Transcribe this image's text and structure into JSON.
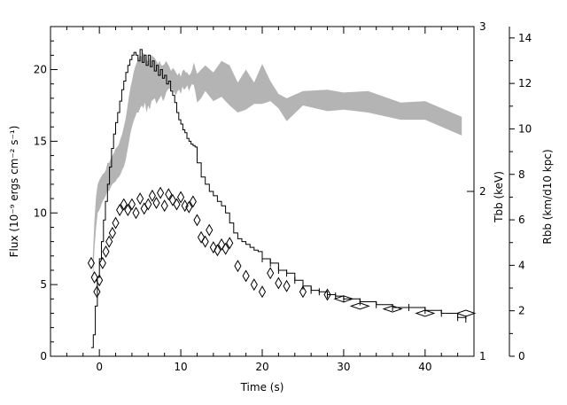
{
  "chart_data": {
    "type": "line",
    "xlabel": "Time (s)",
    "ylabel_left": "Flux (10⁻⁹ ergs cm⁻² s⁻¹)",
    "ylabel_right1": "Tbb (keV)",
    "ylabel_right2": "Rbb (km/d10 kpc)",
    "xlim": [
      -6,
      46
    ],
    "ylim_flux": [
      0,
      23
    ],
    "ylim_tbb": [
      1,
      3
    ],
    "ylim_rbb": [
      0,
      14.5
    ],
    "x_ticks": [
      0,
      10,
      20,
      30,
      40
    ],
    "flux_ticks": [
      0,
      5,
      10,
      15,
      20
    ],
    "tbb_ticks": [
      1,
      2,
      3
    ],
    "rbb_ticks": [
      0,
      2,
      4,
      6,
      8,
      10,
      12,
      14
    ],
    "series": [
      {
        "kind": "step",
        "color": "#000000",
        "x": [
          -1.0,
          -0.75,
          -0.5,
          -0.25,
          0,
          0.25,
          0.5,
          0.75,
          1.0,
          1.25,
          1.5,
          1.75,
          2.0,
          2.25,
          2.5,
          2.75,
          3.0,
          3.25,
          3.5,
          3.75,
          4.0,
          4.25,
          4.5,
          4.75,
          5.0,
          5.25,
          5.5,
          5.75,
          6.0,
          6.25,
          6.5,
          6.75,
          7.0,
          7.25,
          7.5,
          7.75,
          8.0,
          8.25,
          8.5,
          8.75,
          9.0,
          9.25,
          9.5,
          9.75,
          10.0,
          10.25,
          10.5,
          10.75,
          11.0,
          11.25,
          11.5,
          11.75,
          12.0,
          12.5,
          13.0,
          13.5,
          14.0,
          14.5,
          15.0,
          15.5,
          16.0,
          16.5,
          17.0,
          17.5,
          18.0,
          18.5,
          19.0,
          19.5,
          20.0,
          21.0,
          22.0,
          23.0,
          24.0,
          25.0,
          26.0,
          27.0,
          28.0,
          29.0,
          30.0,
          32.0,
          34.0,
          36.0,
          38.0,
          40.0,
          42.0,
          44.0,
          45.0
        ],
        "y": [
          0.6,
          1.5,
          3.5,
          5.5,
          6.8,
          8.0,
          9.5,
          10.8,
          12.0,
          13.2,
          14.5,
          15.5,
          16.3,
          17.0,
          17.8,
          18.6,
          19.2,
          19.8,
          20.3,
          20.7,
          21.0,
          21.2,
          21.0,
          20.6,
          21.4,
          20.5,
          21.0,
          20.3,
          21.0,
          20.2,
          20.6,
          19.9,
          20.3,
          19.6,
          20.0,
          19.4,
          19.6,
          19.0,
          19.2,
          18.5,
          18.2,
          17.7,
          17.0,
          16.5,
          16.2,
          15.8,
          15.6,
          15.2,
          15.0,
          14.8,
          14.7,
          14.6,
          13.5,
          12.5,
          12.0,
          11.5,
          11.2,
          10.8,
          10.5,
          10.0,
          9.3,
          8.6,
          8.2,
          8.0,
          7.8,
          7.6,
          7.4,
          7.3,
          6.8,
          6.5,
          6.0,
          5.8,
          5.3,
          4.9,
          4.6,
          4.5,
          4.3,
          4.2,
          4.0,
          3.8,
          3.6,
          3.4,
          3.4,
          3.2,
          3.0,
          2.7,
          2.6
        ]
      },
      {
        "kind": "band",
        "color": "#b4b4b4",
        "x": [
          -0.8,
          -0.6,
          -0.4,
          -0.2,
          0,
          0.2,
          0.4,
          0.6,
          0.8,
          1.0,
          1.2,
          1.4,
          1.6,
          1.8,
          2.0,
          2.2,
          2.4,
          2.6,
          2.8,
          3.0,
          3.2,
          3.4,
          3.6,
          3.8,
          4.0,
          4.2,
          4.4,
          4.6,
          4.8,
          5.0,
          5.2,
          5.4,
          5.6,
          5.8,
          6.0,
          6.2,
          6.4,
          6.6,
          6.8,
          7.0,
          7.2,
          7.4,
          7.6,
          7.8,
          8.0,
          8.2,
          8.4,
          8.6,
          8.8,
          9.0,
          9.2,
          9.4,
          9.6,
          9.8,
          10.0,
          10.2,
          10.4,
          10.6,
          10.8,
          11.0,
          11.2,
          11.4,
          11.6,
          11.8,
          12.0,
          12.5,
          13.0,
          14.0,
          15.0,
          16.0,
          17.0,
          18.0,
          19.0,
          20.0,
          21.0,
          22.0,
          23.0,
          25.0,
          28.0,
          30.0,
          33.0,
          37.0,
          40.0,
          44.5
        ],
        "low": [
          5.0,
          7.5,
          9.0,
          10.0,
          10.2,
          10.5,
          10.8,
          11.0,
          11.2,
          11.6,
          11.5,
          11.8,
          12.0,
          12.1,
          12.2,
          12.4,
          12.5,
          12.7,
          13.0,
          13.2,
          13.6,
          14.2,
          14.8,
          15.5,
          16.0,
          16.4,
          16.7,
          17.0,
          17.0,
          17.3,
          17.5,
          17.3,
          17.7,
          17.0,
          17.5,
          17.2,
          17.8,
          17.9,
          18.0,
          17.6,
          17.8,
          18.0,
          18.2,
          17.8,
          18.0,
          18.4,
          18.6,
          18.7,
          18.5,
          18.6,
          18.4,
          18.2,
          18.5,
          18.6,
          18.3,
          18.8,
          18.6,
          18.7,
          18.9,
          18.5,
          18.8,
          19.0,
          18.9,
          18.4,
          17.7,
          18.0,
          18.5,
          17.8,
          18.1,
          17.5,
          17.0,
          17.2,
          17.6,
          17.6,
          17.8,
          17.3,
          16.4,
          17.5,
          17.1,
          17.2,
          17.0,
          16.5,
          16.5,
          15.4
        ],
        "high": [
          7.0,
          9.5,
          11.2,
          12.0,
          12.3,
          12.5,
          12.7,
          12.8,
          13.0,
          13.5,
          13.5,
          13.8,
          14.0,
          14.2,
          14.5,
          14.6,
          14.8,
          15.2,
          15.5,
          16.0,
          16.5,
          17.2,
          18.0,
          18.7,
          19.2,
          19.8,
          20.2,
          20.5,
          20.8,
          21.0,
          20.9,
          21.2,
          21.0,
          20.7,
          20.5,
          20.9,
          21.0,
          20.9,
          20.8,
          20.6,
          20.4,
          20.6,
          20.3,
          20.3,
          20.4,
          20.6,
          20.4,
          20.2,
          19.9,
          20.1,
          20.0,
          19.8,
          19.6,
          19.8,
          19.5,
          19.9,
          20.0,
          19.8,
          19.8,
          19.6,
          19.7,
          20.0,
          20.5,
          20.1,
          19.7,
          20.0,
          20.3,
          19.8,
          20.6,
          20.3,
          19.1,
          20.0,
          19.1,
          20.4,
          19.2,
          18.3,
          18.0,
          18.5,
          18.6,
          18.4,
          18.5,
          17.7,
          17.8,
          16.7
        ]
      },
      {
        "kind": "diamond",
        "color": "#000000",
        "x": [
          -1.0,
          -0.6,
          -0.3,
          0,
          0.4,
          0.8,
          1.2,
          1.6,
          2.0,
          2.5,
          3.0,
          3.5,
          4.0,
          4.5,
          5.0,
          5.5,
          6.0,
          6.5,
          7.0,
          7.5,
          8.0,
          8.5,
          9.0,
          9.5,
          10.0,
          10.5,
          11.0,
          11.5,
          12.0,
          12.5,
          13.0,
          13.5,
          14.0,
          14.5,
          15.0,
          15.5,
          16.0,
          17.0,
          18.0,
          19.0,
          20.0,
          21.0,
          22.0,
          23.0,
          25.0,
          28.0,
          30.0,
          32.0,
          36.0,
          40.0,
          45.0
        ],
        "y": [
          6.5,
          5.5,
          4.5,
          5.3,
          6.5,
          7.3,
          8.0,
          8.6,
          9.3,
          10.2,
          10.6,
          10.2,
          10.6,
          10.0,
          11.0,
          10.3,
          10.6,
          11.2,
          10.7,
          11.4,
          10.5,
          11.3,
          10.9,
          10.6,
          11.1,
          10.5,
          10.4,
          10.8,
          9.5,
          8.3,
          8.0,
          8.8,
          7.6,
          7.4,
          7.8,
          7.5,
          7.9,
          6.3,
          5.6,
          5.0,
          4.5,
          5.8,
          5.1,
          4.9,
          4.5,
          4.3,
          4.0,
          3.5,
          3.3,
          3.0,
          3.0
        ]
      }
    ]
  }
}
